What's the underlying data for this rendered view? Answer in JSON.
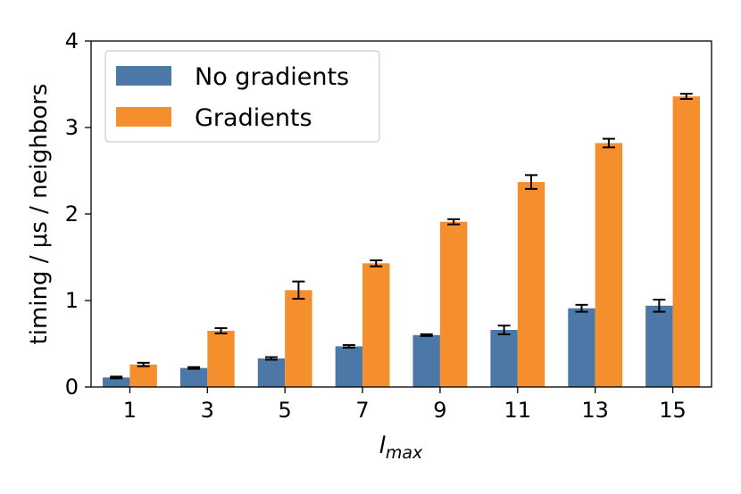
{
  "chart_data": {
    "type": "bar",
    "categories": [
      "1",
      "3",
      "5",
      "7",
      "9",
      "11",
      "13",
      "15"
    ],
    "xlabel": {
      "base": "l",
      "subscript": "max"
    },
    "ylabel": "timing / μs / neighbors",
    "ylim": [
      0,
      4
    ],
    "yticks": [
      "0",
      "1",
      "2",
      "3",
      "4"
    ],
    "grid": false,
    "legend_position": "top-left",
    "series": [
      {
        "name": "No gradients",
        "color": "#4c78a8",
        "values": [
          0.11,
          0.22,
          0.33,
          0.47,
          0.6,
          0.66,
          0.91,
          0.94
        ],
        "errors": [
          0.01,
          0.01,
          0.015,
          0.015,
          0.01,
          0.05,
          0.04,
          0.07
        ]
      },
      {
        "name": "Gradients",
        "color": "#f58f2e",
        "values": [
          0.26,
          0.65,
          1.12,
          1.43,
          1.91,
          2.37,
          2.82,
          3.36
        ],
        "errors": [
          0.02,
          0.03,
          0.1,
          0.035,
          0.03,
          0.08,
          0.05,
          0.03
        ]
      }
    ]
  }
}
